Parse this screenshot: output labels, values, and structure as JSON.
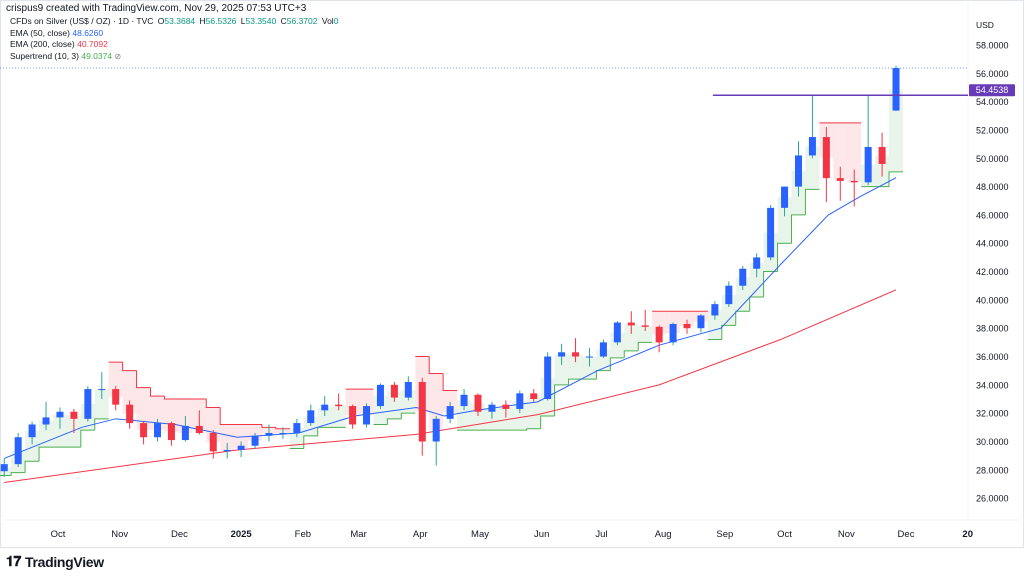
{
  "header": {
    "credit": "crispus9 created with TradingView.com, Nov 29, 2025 07:53 UTC+3"
  },
  "legend": {
    "symbol": "CFDs on Silver (US$ / OZ) · 1D · TVC",
    "o_label": "O",
    "o": "53.3684",
    "h_label": "H",
    "h": "56.5326",
    "l_label": "L",
    "l": "53.3540",
    "c_label": "C",
    "c": "56.3702",
    "vol_label": "Vol",
    "vol": "0",
    "ema50_label": "EMA (50, close)",
    "ema50": "48.6260",
    "ema200_label": "EMA (200, close)",
    "ema200": "40.7092",
    "st_label": "Supertrend (10, 3)",
    "st": "49.0374"
  },
  "footer": {
    "brand": "TradingView"
  },
  "colors": {
    "up": "#2962ff",
    "down": "#f23645",
    "ema50": "#2962ff",
    "ema200": "#f23645",
    "st_up": "#4caf50",
    "st_down": "#f23645",
    "hline": "#673ab7",
    "legend_value": "#089981"
  },
  "chart_data": {
    "type": "candlestick",
    "currency": "USD",
    "ylim": [
      25,
      59
    ],
    "yticks": [
      "58.0000",
      "56.0000",
      "54.0000",
      "52.0000",
      "50.0000",
      "48.0000",
      "46.0000",
      "44.0000",
      "42.0000",
      "40.0000",
      "38.0000",
      "36.0000",
      "34.0000",
      "32.0000",
      "30.0000",
      "28.0000",
      "26.0000"
    ],
    "xticks": [
      [
        "2024-10-01",
        "Oct"
      ],
      [
        "2024-11-01",
        "Nov"
      ],
      [
        "2024-12-01",
        "Dec"
      ],
      [
        "2025-01-01",
        "2025"
      ],
      [
        "2025-02-01",
        "Feb"
      ],
      [
        "2025-03-01",
        "Mar"
      ],
      [
        "2025-04-01",
        "Apr"
      ],
      [
        "2025-05-01",
        "May"
      ],
      [
        "2025-06-01",
        "Jun"
      ],
      [
        "2025-07-01",
        "Jul"
      ],
      [
        "2025-08-01",
        "Aug"
      ],
      [
        "2025-09-01",
        "Sep"
      ],
      [
        "2025-10-01",
        "Oct"
      ],
      [
        "2025-11-01",
        "Nov"
      ],
      [
        "2025-12-01",
        "Dec"
      ],
      [
        "2026-01-01",
        "20"
      ]
    ],
    "horizontal_line": {
      "value": 54.4538,
      "label": "54.4538",
      "from": "2025-09-01"
    },
    "last_price": 56.3702,
    "candles_columns": [
      "date",
      "open",
      "high",
      "low",
      "close",
      "supertrend",
      "st_direction"
    ],
    "candles": [
      [
        "2024-09-06",
        27.9,
        28.8,
        27.5,
        28.4,
        27.6,
        1
      ],
      [
        "2024-09-13",
        28.4,
        30.6,
        28.2,
        30.3,
        27.8,
        1
      ],
      [
        "2024-09-20",
        30.3,
        31.4,
        29.8,
        31.2,
        28.6,
        1
      ],
      [
        "2024-09-27",
        31.2,
        32.8,
        30.8,
        31.7,
        29.6,
        1
      ],
      [
        "2024-10-04",
        31.7,
        32.4,
        30.9,
        32.1,
        29.6,
        1
      ],
      [
        "2024-10-11",
        32.1,
        32.3,
        30.6,
        31.6,
        29.6,
        1
      ],
      [
        "2024-10-18",
        31.6,
        33.9,
        31.4,
        33.7,
        30.8,
        1
      ],
      [
        "2024-10-25",
        33.7,
        34.9,
        33.0,
        33.7,
        31.6,
        1
      ],
      [
        "2024-11-01",
        33.7,
        33.9,
        32.2,
        32.6,
        35.6,
        -1
      ],
      [
        "2024-11-08",
        32.6,
        32.9,
        30.9,
        31.3,
        35.0,
        -1
      ],
      [
        "2024-11-15",
        31.3,
        31.4,
        29.8,
        30.3,
        33.8,
        -1
      ],
      [
        "2024-11-22",
        30.3,
        31.6,
        30.0,
        31.3,
        33.2,
        -1
      ],
      [
        "2024-11-29",
        31.3,
        31.4,
        29.7,
        30.1,
        33.0,
        -1
      ],
      [
        "2024-12-06",
        30.1,
        31.8,
        30.0,
        31.1,
        33.0,
        -1
      ],
      [
        "2024-12-13",
        31.1,
        32.2,
        30.5,
        30.6,
        33.0,
        -1
      ],
      [
        "2024-12-20",
        30.6,
        30.8,
        28.8,
        29.3,
        32.4,
        -1
      ],
      [
        "2024-12-27",
        29.3,
        29.9,
        28.8,
        29.4,
        31.2,
        -1
      ],
      [
        "2025-01-03",
        29.4,
        30.0,
        28.9,
        29.7,
        31.2,
        -1
      ],
      [
        "2025-01-10",
        29.7,
        30.6,
        29.5,
        30.4,
        31.2,
        -1
      ],
      [
        "2025-01-17",
        30.4,
        31.2,
        30.0,
        30.6,
        31.0,
        -1
      ],
      [
        "2025-01-24",
        30.6,
        31.0,
        30.2,
        30.6,
        30.9,
        -1
      ],
      [
        "2025-01-31",
        30.6,
        31.6,
        30.3,
        31.3,
        29.5,
        1
      ],
      [
        "2025-02-07",
        31.3,
        32.6,
        31.1,
        32.2,
        30.4,
        1
      ],
      [
        "2025-02-14",
        32.2,
        33.2,
        31.8,
        32.6,
        31.0,
        1
      ],
      [
        "2025-02-21",
        32.6,
        33.4,
        32.2,
        32.5,
        31.0,
        1
      ],
      [
        "2025-02-28",
        32.5,
        32.6,
        30.9,
        31.2,
        33.7,
        -1
      ],
      [
        "2025-03-07",
        31.2,
        32.7,
        31.0,
        32.5,
        33.7,
        -1
      ],
      [
        "2025-03-14",
        32.5,
        34.1,
        32.3,
        34.0,
        31.2,
        1
      ],
      [
        "2025-03-21",
        34.0,
        34.2,
        32.8,
        33.1,
        31.6,
        1
      ],
      [
        "2025-03-28",
        33.1,
        34.6,
        32.9,
        34.2,
        32.0,
        1
      ],
      [
        "2025-04-04",
        34.2,
        34.5,
        29.0,
        30.0,
        36.0,
        -1
      ],
      [
        "2025-04-11",
        30.0,
        31.8,
        28.3,
        31.6,
        34.8,
        -1
      ],
      [
        "2025-04-18",
        31.6,
        32.8,
        31.3,
        32.5,
        33.6,
        -1
      ],
      [
        "2025-04-25",
        32.5,
        33.7,
        32.2,
        33.3,
        30.8,
        1
      ],
      [
        "2025-05-02",
        33.3,
        33.4,
        31.8,
        32.1,
        30.8,
        1
      ],
      [
        "2025-05-09",
        32.1,
        32.8,
        31.6,
        32.6,
        30.8,
        1
      ],
      [
        "2025-05-16",
        32.6,
        32.9,
        31.7,
        32.3,
        30.8,
        1
      ],
      [
        "2025-05-23",
        32.3,
        33.6,
        32.0,
        33.4,
        30.8,
        1
      ],
      [
        "2025-05-30",
        33.4,
        33.7,
        32.8,
        33.0,
        30.9,
        1
      ],
      [
        "2025-06-06",
        33.0,
        36.3,
        32.9,
        36.0,
        31.8,
        1
      ],
      [
        "2025-06-13",
        36.0,
        36.9,
        35.4,
        36.3,
        34.0,
        1
      ],
      [
        "2025-06-20",
        36.3,
        37.3,
        35.6,
        36.0,
        34.4,
        1
      ],
      [
        "2025-06-27",
        36.0,
        36.6,
        35.3,
        36.0,
        34.4,
        1
      ],
      [
        "2025-07-04",
        36.0,
        37.2,
        35.9,
        37.0,
        35.0,
        1
      ],
      [
        "2025-07-11",
        37.0,
        38.5,
        36.8,
        38.4,
        35.9,
        1
      ],
      [
        "2025-07-18",
        38.4,
        39.2,
        37.6,
        38.2,
        36.4,
        1
      ],
      [
        "2025-07-25",
        38.2,
        39.3,
        37.8,
        38.1,
        37.0,
        1
      ],
      [
        "2025-08-01",
        38.1,
        38.2,
        36.3,
        37.0,
        39.2,
        -1
      ],
      [
        "2025-08-08",
        37.0,
        38.4,
        36.8,
        38.3,
        39.2,
        -1
      ],
      [
        "2025-08-15",
        38.3,
        38.6,
        37.6,
        38.0,
        39.2,
        -1
      ],
      [
        "2025-08-22",
        38.0,
        39.0,
        37.7,
        38.9,
        39.2,
        -1
      ],
      [
        "2025-08-29",
        38.9,
        39.9,
        38.6,
        39.7,
        37.2,
        1
      ],
      [
        "2025-09-05",
        39.7,
        41.3,
        39.5,
        41.0,
        38.2,
        1
      ],
      [
        "2025-09-12",
        41.0,
        42.4,
        40.7,
        42.2,
        39.2,
        1
      ],
      [
        "2025-09-19",
        42.2,
        43.3,
        41.6,
        43.0,
        40.2,
        1
      ],
      [
        "2025-09-26",
        43.0,
        46.7,
        42.8,
        46.5,
        42.0,
        1
      ],
      [
        "2025-10-03",
        46.5,
        48.0,
        45.9,
        48.0,
        44.0,
        1
      ],
      [
        "2025-10-10",
        48.0,
        51.2,
        47.3,
        50.2,
        46.0,
        1
      ],
      [
        "2025-10-17",
        50.2,
        54.4,
        50.0,
        51.5,
        47.8,
        1
      ],
      [
        "2025-10-24",
        51.5,
        52.2,
        46.9,
        48.6,
        52.5,
        -1
      ],
      [
        "2025-10-31",
        48.6,
        49.4,
        47.0,
        48.4,
        52.5,
        -1
      ],
      [
        "2025-11-07",
        48.4,
        49.2,
        46.6,
        48.3,
        52.5,
        -1
      ],
      [
        "2025-11-14",
        48.3,
        54.4,
        48.1,
        50.8,
        48.0,
        1
      ],
      [
        "2025-11-21",
        50.8,
        51.8,
        48.7,
        49.6,
        48.0,
        1
      ],
      [
        "2025-11-28",
        53.3684,
        56.5326,
        53.354,
        56.3702,
        49.0374,
        1
      ]
    ],
    "ema50": [
      [
        "2024-09-06",
        28.8
      ],
      [
        "2024-10-15",
        31.0
      ],
      [
        "2024-11-01",
        31.6
      ],
      [
        "2024-12-01",
        31.2
      ],
      [
        "2025-01-01",
        30.3
      ],
      [
        "2025-02-01",
        30.6
      ],
      [
        "2025-03-01",
        31.8
      ],
      [
        "2025-04-01",
        32.4
      ],
      [
        "2025-04-15",
        31.8
      ],
      [
        "2025-05-01",
        32.2
      ],
      [
        "2025-06-01",
        32.8
      ],
      [
        "2025-07-01",
        35.0
      ],
      [
        "2025-08-01",
        36.8
      ],
      [
        "2025-09-01",
        38.0
      ],
      [
        "2025-10-01",
        42.5
      ],
      [
        "2025-10-25",
        46.0
      ],
      [
        "2025-11-10",
        47.3
      ],
      [
        "2025-11-28",
        48.626
      ]
    ],
    "ema200": [
      [
        "2024-09-06",
        27.1
      ],
      [
        "2025-01-01",
        29.4
      ],
      [
        "2025-04-01",
        30.5
      ],
      [
        "2025-06-01",
        31.9
      ],
      [
        "2025-08-01",
        34.0
      ],
      [
        "2025-10-01",
        37.2
      ],
      [
        "2025-11-28",
        40.7092
      ]
    ]
  }
}
